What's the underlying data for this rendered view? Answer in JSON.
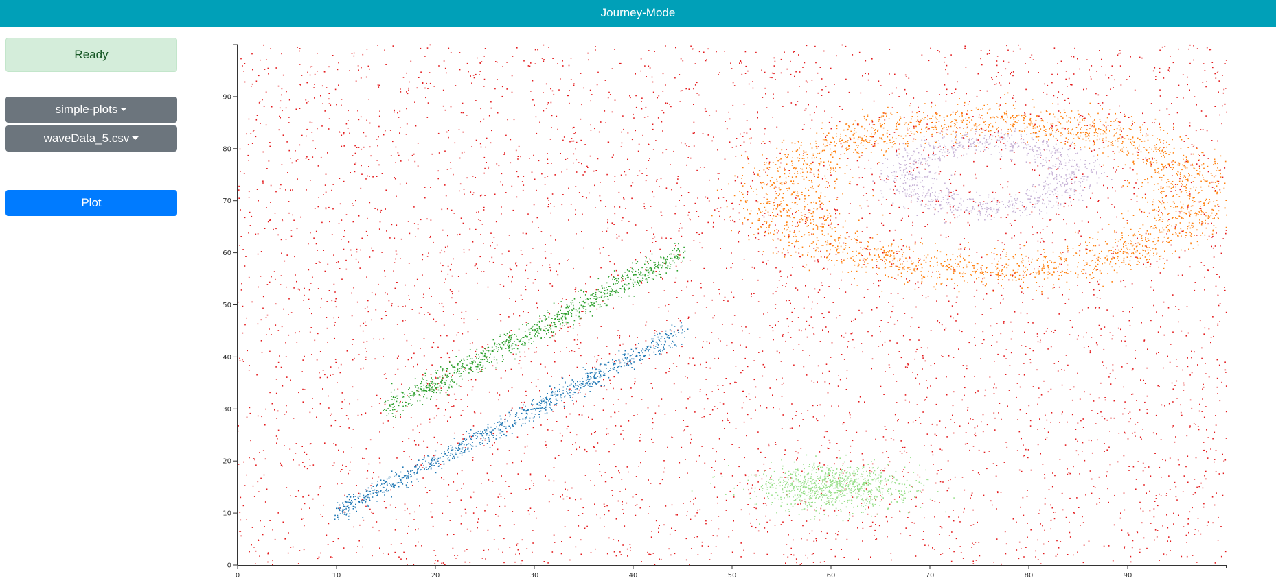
{
  "app": {
    "title": "Journey-Mode"
  },
  "sidebar": {
    "status": "Ready",
    "dataset_dropdown": "simple-plots",
    "file_dropdown": "waveData_5.csv",
    "plot_button": "Plot"
  },
  "colors": {
    "header": "#00a0b8",
    "status_bg": "#d4edda",
    "dropdown": "#6c757d",
    "plot_button": "#007bff",
    "noise": "#e31a1c",
    "line_upper": "#2ca02c",
    "line_lower": "#1f77b4",
    "outer_ring": "#ff7f0e",
    "inner_ring": "#c5b0d5",
    "blob": "#98df8a"
  },
  "chart_data": {
    "type": "scatter",
    "title": "",
    "xlabel": "",
    "ylabel": "",
    "xlim": [
      0,
      100
    ],
    "ylim": [
      0,
      100
    ],
    "x_ticks": [
      0,
      10,
      20,
      30,
      40,
      50,
      60,
      70,
      80,
      90
    ],
    "y_ticks": [
      0,
      10,
      20,
      30,
      40,
      50,
      60,
      70,
      80,
      90
    ],
    "grid": false,
    "legend": "none",
    "series": [
      {
        "kind": "uniform",
        "count": 5000,
        "x_range": [
          0,
          100
        ],
        "y_range": [
          0,
          100
        ],
        "color": "#e31a1c"
      },
      {
        "kind": "line",
        "count": 900,
        "x_range": [
          15,
          45
        ],
        "y_start": 30,
        "y_end": 60,
        "spread": 1.2,
        "color": "#2ca02c"
      },
      {
        "kind": "line",
        "count": 900,
        "x_range": [
          10,
          45
        ],
        "y_start": 10,
        "y_end": 45,
        "spread": 1.0,
        "color": "#1f77b4"
      },
      {
        "kind": "ring",
        "count": 2600,
        "center": [
          76,
          71
        ],
        "radius_x": 21,
        "radius_y": 14.5,
        "thickness": 2.6,
        "color": "#ff7f0e"
      },
      {
        "kind": "ring",
        "count": 900,
        "center": [
          76,
          75
        ],
        "radius_x": 8.5,
        "radius_y": 6.5,
        "thickness": 1.5,
        "color": "#c5b0d5"
      },
      {
        "kind": "blob",
        "count": 900,
        "center": [
          60,
          15
        ],
        "sd_x": 4.0,
        "sd_y": 2.2,
        "color": "#98df8a"
      }
    ]
  }
}
